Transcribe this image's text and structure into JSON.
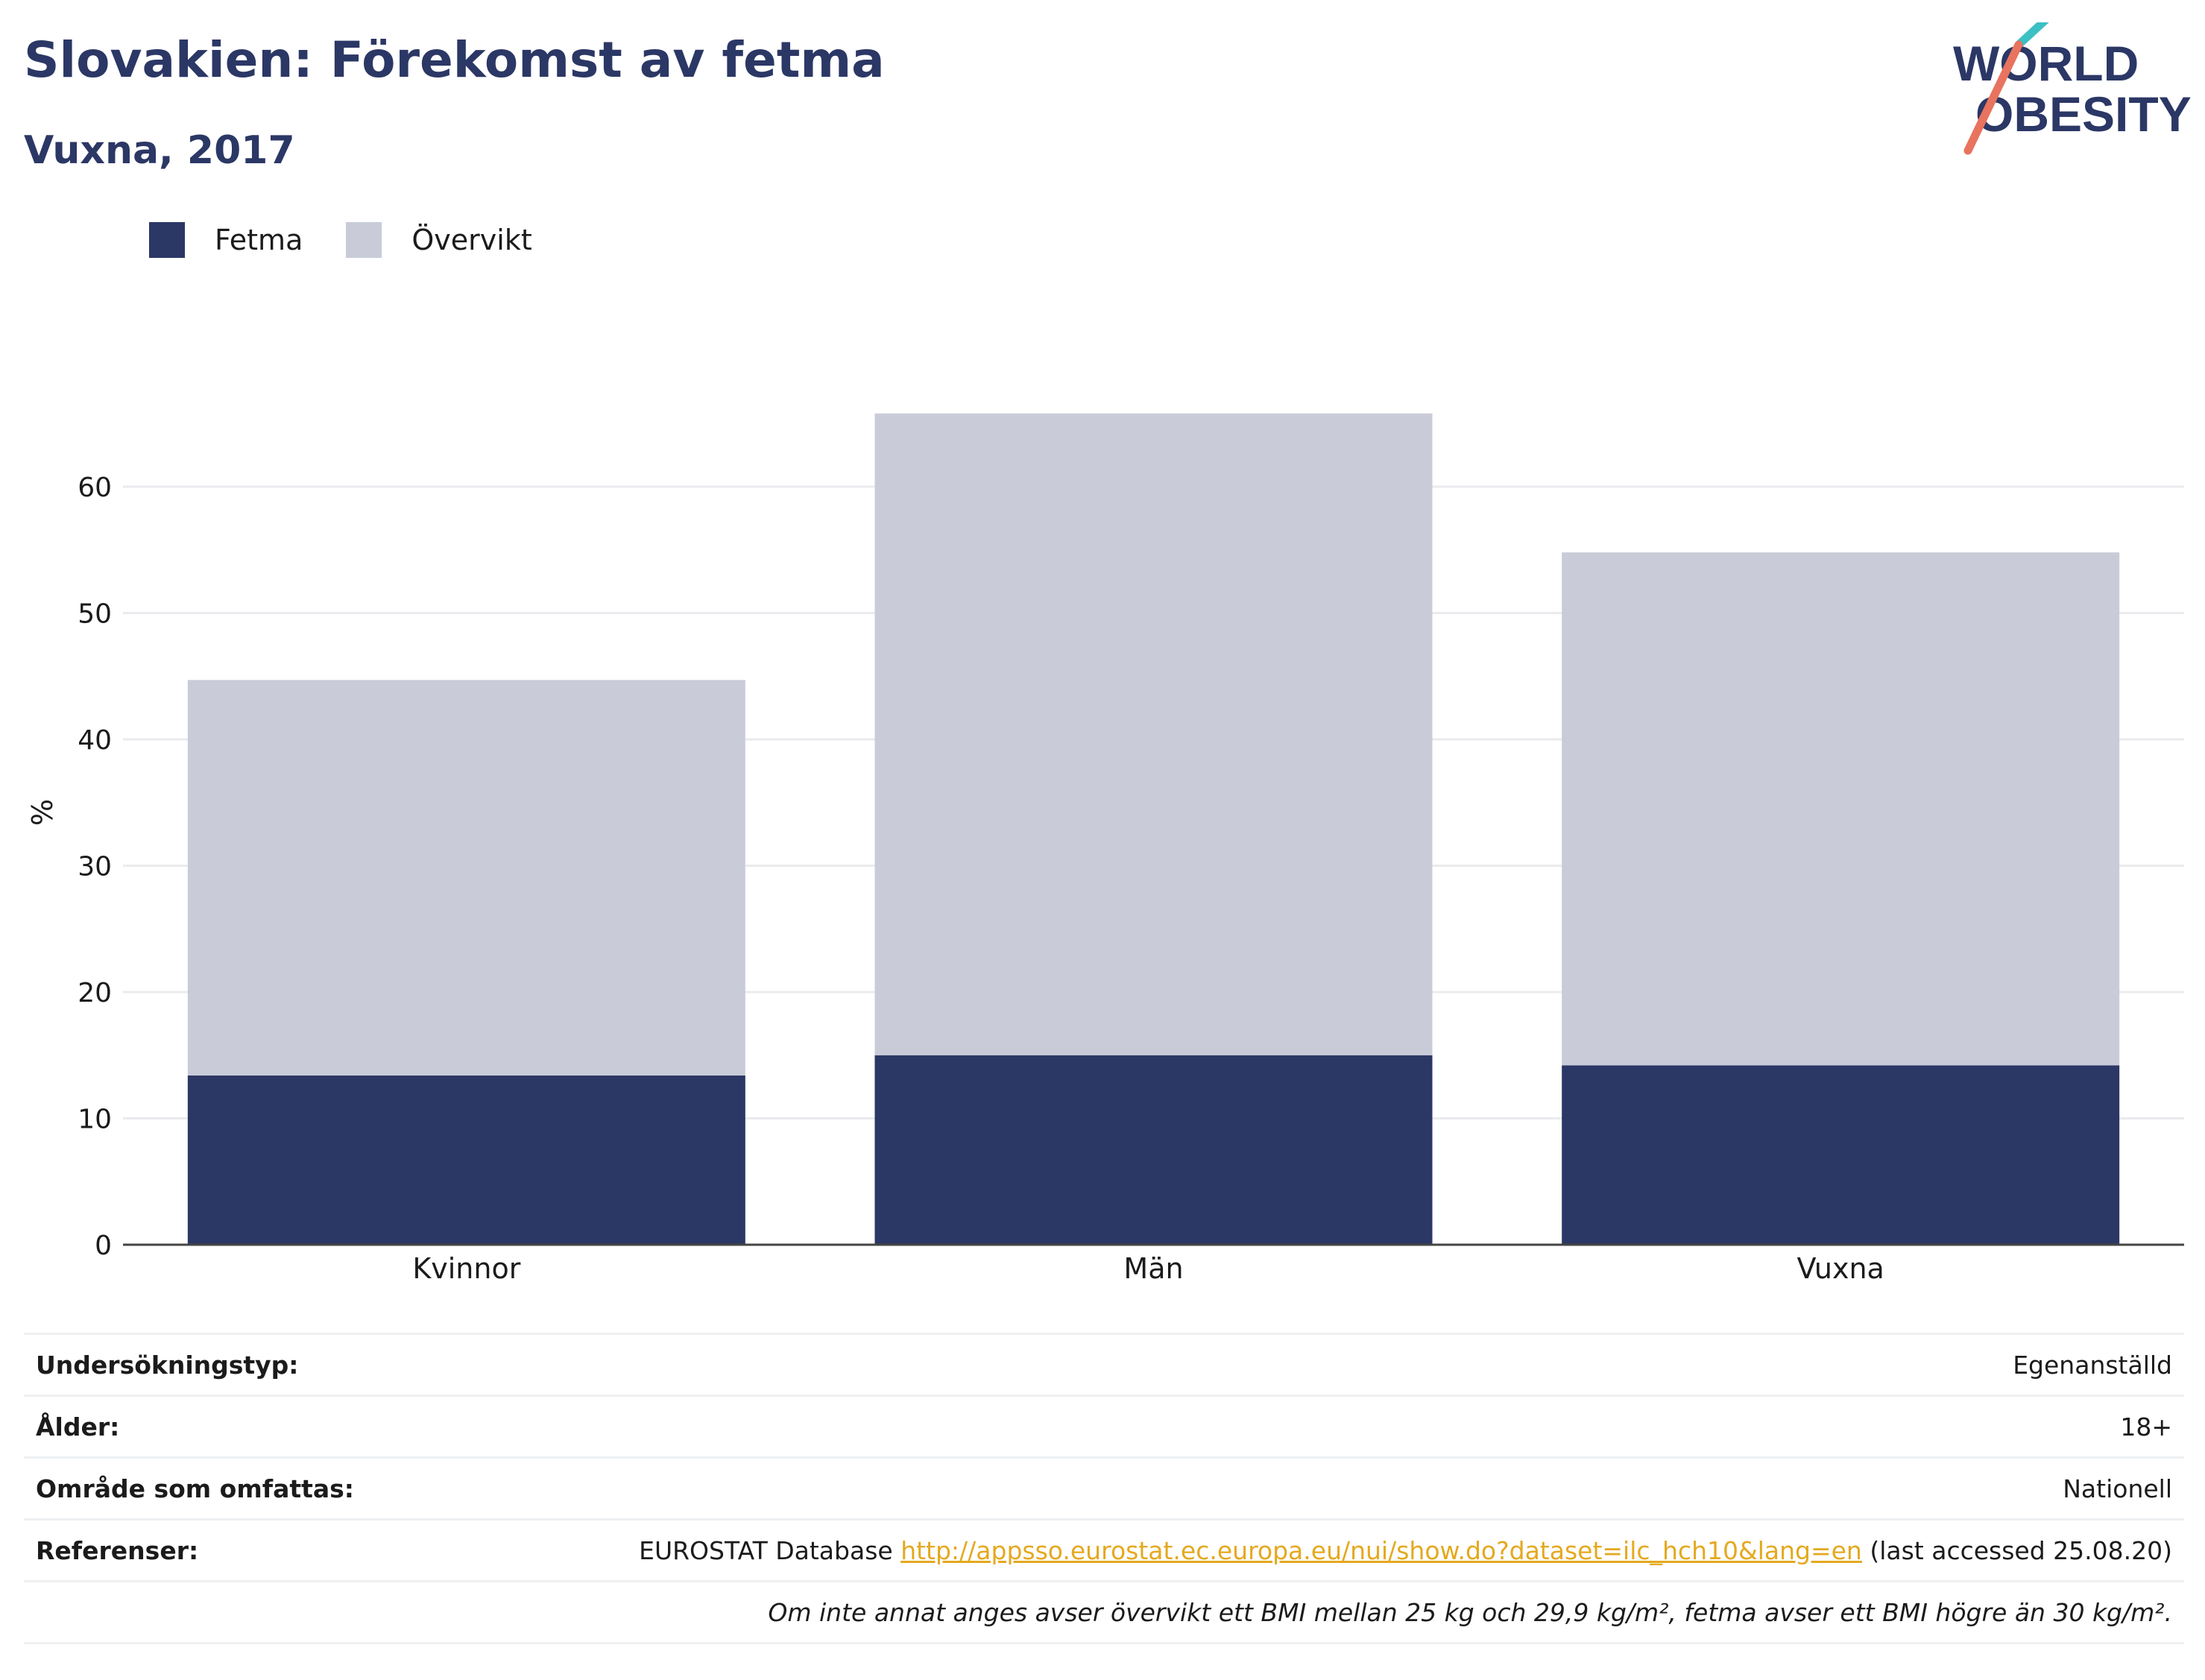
{
  "header": {
    "title": "Slovakien: Förekomst av fetma",
    "subtitle": "Vuxna, 2017"
  },
  "logo": {
    "line1": "WORLD",
    "line2": "OBESITY"
  },
  "colors": {
    "fetma": "#2b3765",
    "overvikt": "#c9ccd8",
    "title": "#2b3765",
    "link": "#e4a91f",
    "logo_teal": "#3cc0c4",
    "logo_coral": "#e8735e"
  },
  "legend": [
    {
      "label": "Fetma",
      "color": "#2b3765"
    },
    {
      "label": "Övervikt",
      "color": "#c9ccd8"
    }
  ],
  "chart_data": {
    "type": "bar",
    "stacked": true,
    "categories": [
      "Kvinnor",
      "Män",
      "Vuxna"
    ],
    "series": [
      {
        "name": "Fetma",
        "values": [
          13.4,
          15.0,
          14.2
        ]
      },
      {
        "name": "Övervikt",
        "values": [
          31.3,
          50.8,
          40.6
        ]
      }
    ],
    "ylabel": "%",
    "xlabel": "",
    "ylim": [
      0,
      70
    ],
    "yticks": [
      0,
      10,
      20,
      30,
      40,
      50,
      60
    ],
    "grid": true,
    "legend_position": "top-left"
  },
  "meta": {
    "survey_label": "Undersökningstyp:",
    "survey_value": "Egenanställd",
    "age_label": "Ålder:",
    "age_value": "18+",
    "area_label": "Område som omfattas:",
    "area_value": "Nationell",
    "ref_label": "Referenser:",
    "ref_prefix": "EUROSTAT Database ",
    "ref_link": "http://appsso.eurostat.ec.europa.eu/nui/show.do?dataset=ilc_hch10&lang=en",
    "ref_suffix": " (last accessed 25.08.20)",
    "note": "Om inte annat anges avser övervikt ett BMI mellan 25 kg och 29,9 kg/m², fetma avser ett BMI högre än 30 kg/m²."
  }
}
